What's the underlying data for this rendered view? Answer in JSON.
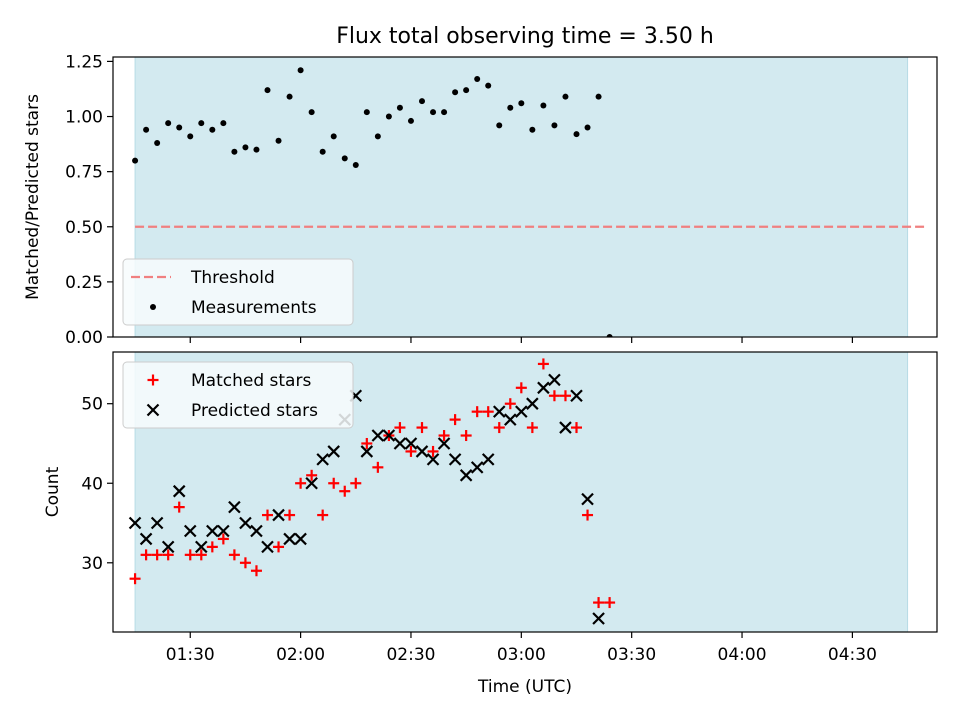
{
  "figure": {
    "title": "Flux total observing time = 3.50 h",
    "xlabel": "Time (UTC)",
    "x_tick_labels": [
      "01:30",
      "02:00",
      "02:30",
      "03:00",
      "03:30",
      "04:00",
      "04:30"
    ]
  },
  "colors": {
    "observing_span": "#d3eaf0",
    "threshold": "#f08080",
    "measurement": "#000000",
    "matched": "#ff0000",
    "predicted": "#000000"
  },
  "chart_data": [
    {
      "type": "scatter",
      "ylabel": "Matched/Predicted stars",
      "x_axis": "time",
      "xlim": [
        "01:09",
        "04:53"
      ],
      "ylim": [
        0.0,
        1.27
      ],
      "y_ticks": [
        "0.00",
        "0.25",
        "0.50",
        "0.75",
        "1.00",
        "1.25"
      ],
      "observing_span": [
        "01:15",
        "04:45"
      ],
      "threshold": {
        "name": "Threshold",
        "y": 0.5,
        "x_range": [
          "01:15",
          "04:50"
        ]
      },
      "legend": {
        "placement": "lower-left",
        "entries": [
          "Threshold",
          "Measurements"
        ]
      },
      "series": [
        {
          "name": "Measurements",
          "points": [
            [
              "01:15",
              0.8
            ],
            [
              "01:18",
              0.94
            ],
            [
              "01:21",
              0.88
            ],
            [
              "01:24",
              0.97
            ],
            [
              "01:27",
              0.95
            ],
            [
              "01:30",
              0.91
            ],
            [
              "01:33",
              0.97
            ],
            [
              "01:36",
              0.94
            ],
            [
              "01:39",
              0.97
            ],
            [
              "01:42",
              0.84
            ],
            [
              "01:45",
              0.86
            ],
            [
              "01:48",
              0.85
            ],
            [
              "01:51",
              1.12
            ],
            [
              "01:54",
              0.89
            ],
            [
              "01:57",
              1.09
            ],
            [
              "02:00",
              1.21
            ],
            [
              "02:03",
              1.02
            ],
            [
              "02:06",
              0.84
            ],
            [
              "02:09",
              0.91
            ],
            [
              "02:12",
              0.81
            ],
            [
              "02:15",
              0.78
            ],
            [
              "02:18",
              1.02
            ],
            [
              "02:21",
              0.91
            ],
            [
              "02:24",
              1.0
            ],
            [
              "02:27",
              1.04
            ],
            [
              "02:30",
              0.98
            ],
            [
              "02:33",
              1.07
            ],
            [
              "02:36",
              1.02
            ],
            [
              "02:39",
              1.02
            ],
            [
              "02:42",
              1.11
            ],
            [
              "02:45",
              1.12
            ],
            [
              "02:48",
              1.17
            ],
            [
              "02:51",
              1.14
            ],
            [
              "02:54",
              0.96
            ],
            [
              "02:57",
              1.04
            ],
            [
              "03:00",
              1.06
            ],
            [
              "03:03",
              0.94
            ],
            [
              "03:06",
              1.05
            ],
            [
              "03:09",
              0.96
            ],
            [
              "03:12",
              1.09
            ],
            [
              "03:15",
              0.92
            ],
            [
              "03:18",
              0.95
            ],
            [
              "03:21",
              1.09
            ],
            [
              "03:24",
              0.0
            ]
          ]
        }
      ]
    },
    {
      "type": "scatter",
      "ylabel": "Count",
      "x_axis": "time",
      "xlim": [
        "01:09",
        "04:53"
      ],
      "ylim": [
        21.3,
        56.5
      ],
      "y_ticks": [
        "30",
        "40",
        "50"
      ],
      "observing_span": [
        "01:15",
        "04:45"
      ],
      "legend": {
        "placement": "top-left",
        "entries": [
          "Matched stars",
          "Predicted stars"
        ]
      },
      "series": [
        {
          "name": "Matched stars",
          "marker": "plus",
          "points": [
            [
              "01:15",
              28
            ],
            [
              "01:18",
              31
            ],
            [
              "01:21",
              31
            ],
            [
              "01:24",
              31
            ],
            [
              "01:27",
              37
            ],
            [
              "01:30",
              31
            ],
            [
              "01:33",
              31
            ],
            [
              "01:36",
              32
            ],
            [
              "01:39",
              33
            ],
            [
              "01:42",
              31
            ],
            [
              "01:45",
              30
            ],
            [
              "01:48",
              29
            ],
            [
              "01:51",
              36
            ],
            [
              "01:54",
              32
            ],
            [
              "01:57",
              36
            ],
            [
              "02:00",
              40
            ],
            [
              "02:03",
              41
            ],
            [
              "02:06",
              36
            ],
            [
              "02:09",
              40
            ],
            [
              "02:12",
              39
            ],
            [
              "02:15",
              40
            ],
            [
              "02:18",
              45
            ],
            [
              "02:21",
              42
            ],
            [
              "02:24",
              46
            ],
            [
              "02:27",
              47
            ],
            [
              "02:30",
              44
            ],
            [
              "02:33",
              47
            ],
            [
              "02:36",
              44
            ],
            [
              "02:39",
              46
            ],
            [
              "02:42",
              48
            ],
            [
              "02:45",
              46
            ],
            [
              "02:48",
              49
            ],
            [
              "02:51",
              49
            ],
            [
              "02:54",
              47
            ],
            [
              "02:57",
              50
            ],
            [
              "03:00",
              52
            ],
            [
              "03:03",
              47
            ],
            [
              "03:06",
              55
            ],
            [
              "03:09",
              51
            ],
            [
              "03:12",
              51
            ],
            [
              "03:15",
              47
            ],
            [
              "03:18",
              36
            ],
            [
              "03:21",
              25
            ],
            [
              "03:24",
              25
            ]
          ]
        },
        {
          "name": "Predicted stars",
          "marker": "x",
          "points": [
            [
              "01:15",
              35
            ],
            [
              "01:18",
              33
            ],
            [
              "01:21",
              35
            ],
            [
              "01:24",
              32
            ],
            [
              "01:27",
              39
            ],
            [
              "01:30",
              34
            ],
            [
              "01:33",
              32
            ],
            [
              "01:36",
              34
            ],
            [
              "01:39",
              34
            ],
            [
              "01:42",
              37
            ],
            [
              "01:45",
              35
            ],
            [
              "01:48",
              34
            ],
            [
              "01:51",
              32
            ],
            [
              "01:54",
              36
            ],
            [
              "01:57",
              33
            ],
            [
              "02:00",
              33
            ],
            [
              "02:03",
              40
            ],
            [
              "02:06",
              43
            ],
            [
              "02:09",
              44
            ],
            [
              "02:12",
              48
            ],
            [
              "02:15",
              51
            ],
            [
              "02:18",
              44
            ],
            [
              "02:21",
              46
            ],
            [
              "02:24",
              46
            ],
            [
              "02:27",
              45
            ],
            [
              "02:30",
              45
            ],
            [
              "02:33",
              44
            ],
            [
              "02:36",
              43
            ],
            [
              "02:39",
              45
            ],
            [
              "02:42",
              43
            ],
            [
              "02:45",
              41
            ],
            [
              "02:48",
              42
            ],
            [
              "02:51",
              43
            ],
            [
              "02:54",
              49
            ],
            [
              "02:57",
              48
            ],
            [
              "03:00",
              49
            ],
            [
              "03:03",
              50
            ],
            [
              "03:06",
              52
            ],
            [
              "03:09",
              53
            ],
            [
              "03:12",
              47
            ],
            [
              "03:15",
              51
            ],
            [
              "03:18",
              38
            ],
            [
              "03:21",
              23
            ]
          ]
        }
      ]
    }
  ]
}
